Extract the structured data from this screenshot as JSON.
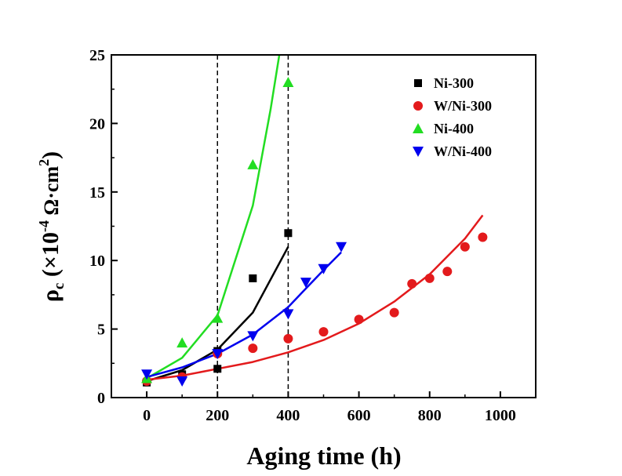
{
  "chart_data": {
    "type": "scatter",
    "title": "",
    "xlabel": "Aging time (h)",
    "ylabel": {
      "rho": "ρ",
      "sub": "c",
      "open": " (×10",
      "exp": "-4",
      "unit": " Ω·cm",
      "unit_exp": "2",
      "close": ")"
    },
    "xlim": [
      -100,
      1100
    ],
    "ylim": [
      0,
      25
    ],
    "xticks": [
      0,
      200,
      400,
      600,
      800,
      1000
    ],
    "yticks": [
      0,
      5,
      10,
      15,
      20,
      25
    ],
    "grid": false,
    "legend_position": "top-right",
    "reference_lines_x": [
      200,
      400
    ],
    "series": [
      {
        "name": "Ni-300",
        "marker": "square",
        "color": "#000000",
        "points": [
          [
            0,
            1.1
          ],
          [
            100,
            1.7
          ],
          [
            200,
            2.1
          ],
          [
            200,
            3.4
          ],
          [
            300,
            8.7
          ],
          [
            400,
            12.0
          ]
        ],
        "fit": [
          [
            0,
            1.2
          ],
          [
            100,
            2.0
          ],
          [
            200,
            3.5
          ],
          [
            300,
            6.2
          ],
          [
            400,
            11.0
          ]
        ]
      },
      {
        "name": "W/Ni-300",
        "marker": "circle",
        "color": "#e31a1c",
        "points": [
          [
            0,
            1.2
          ],
          [
            100,
            1.5
          ],
          [
            200,
            3.2
          ],
          [
            300,
            3.6
          ],
          [
            400,
            4.3
          ],
          [
            500,
            4.8
          ],
          [
            600,
            5.7
          ],
          [
            700,
            6.2
          ],
          [
            750,
            8.3
          ],
          [
            800,
            8.7
          ],
          [
            850,
            9.2
          ],
          [
            900,
            11.0
          ],
          [
            950,
            11.7
          ]
        ],
        "fit": [
          [
            0,
            1.3
          ],
          [
            100,
            1.6
          ],
          [
            200,
            2.1
          ],
          [
            300,
            2.6
          ],
          [
            400,
            3.3
          ],
          [
            500,
            4.2
          ],
          [
            600,
            5.4
          ],
          [
            700,
            7.0
          ],
          [
            800,
            9.0
          ],
          [
            900,
            11.6
          ],
          [
            950,
            13.3
          ]
        ]
      },
      {
        "name": "Ni-400",
        "marker": "triangle-up",
        "color": "#22dd22",
        "points": [
          [
            0,
            1.4
          ],
          [
            100,
            4.0
          ],
          [
            200,
            5.8
          ],
          [
            300,
            17.0
          ],
          [
            400,
            23.0
          ]
        ],
        "fit": [
          [
            0,
            1.4
          ],
          [
            100,
            2.9
          ],
          [
            200,
            6.0
          ],
          [
            300,
            14.0
          ],
          [
            350,
            21.0
          ],
          [
            375,
            25.0
          ]
        ]
      },
      {
        "name": "W/Ni-400",
        "marker": "triangle-down",
        "color": "#0000ee",
        "points": [
          [
            0,
            1.7
          ],
          [
            100,
            1.2
          ],
          [
            200,
            3.2
          ],
          [
            300,
            4.5
          ],
          [
            400,
            6.1
          ],
          [
            450,
            8.4
          ],
          [
            500,
            9.4
          ],
          [
            550,
            11.0
          ]
        ],
        "fit": [
          [
            0,
            1.5
          ],
          [
            100,
            2.2
          ],
          [
            200,
            3.2
          ],
          [
            300,
            4.6
          ],
          [
            400,
            6.6
          ],
          [
            500,
            9.3
          ],
          [
            550,
            10.6
          ]
        ]
      }
    ]
  }
}
